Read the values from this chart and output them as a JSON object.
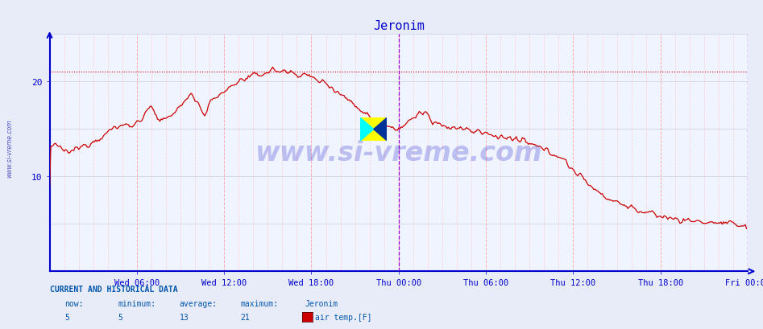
{
  "title": "Jeronim",
  "title_color": "#0000cc",
  "bg_color": "#e8ecf8",
  "plot_bg_color": "#f0f4ff",
  "line_color": "#cc0000",
  "max_line_color": "#cc0000",
  "vline_color": "#9900cc",
  "axis_color": "#0000cc",
  "tick_color": "#0000cc",
  "grid_v_minor": "#ffcccc",
  "grid_v_major": "#ffaaaa",
  "grid_h": "#ccccdd",
  "ylim": [
    0,
    25
  ],
  "yticks": [
    10,
    20
  ],
  "xtick_labels": [
    "Wed 06:00",
    "Wed 12:00",
    "Wed 18:00",
    "Thu 00:00",
    "Thu 06:00",
    "Thu 12:00",
    "Thu 18:00",
    "Fri 00:00"
  ],
  "xtick_positions": [
    72,
    144,
    216,
    288,
    360,
    432,
    504,
    576
  ],
  "total_points": 576,
  "max_value": 21,
  "now_value": 5,
  "min_value": 5,
  "avg_value": 13,
  "watermark": "www.si-vreme.com",
  "watermark_color": "#0000bb",
  "sidebar_text": "www.si-vreme.com",
  "bottom_label_color": "#0055aa",
  "bottom_value_color": "#0055aa",
  "legend_color": "#cc0000",
  "legend_text": "air temp.[F]",
  "legend_label": "Jeronim",
  "info_header": "CURRENT AND HISTORICAL DATA",
  "info_now": "now:",
  "info_min": "minimum:",
  "info_avg": "average:",
  "info_max": "maximum:"
}
